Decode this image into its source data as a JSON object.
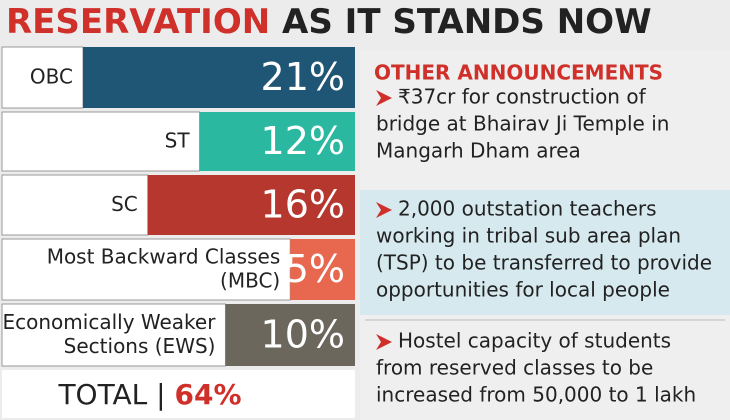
{
  "chart_data": {
    "type": "bar",
    "title_parts": [
      "RESERVATION",
      "AS IT STANDS NOW"
    ],
    "categories": [
      "OBC",
      "ST",
      "SC",
      "Most Backward Classes\n(MBC)",
      "Economically Weaker\nSections (EWS)"
    ],
    "values": [
      21,
      12,
      16,
      5,
      10
    ],
    "value_labels": [
      "21%",
      "12%",
      "16%",
      "5%",
      "10%"
    ],
    "colors": [
      "#1f5575",
      "#2bb8a0",
      "#b5372e",
      "#e8674f",
      "#6b675c"
    ],
    "total_label": "TOTAL |",
    "total": 64,
    "total_value_label": "64%"
  },
  "announcements": {
    "title": "OTHER ANNOUNCEMENTS",
    "items": [
      [
        "₹37cr for construction of",
        "bridge at Bhairav Ji Temple in",
        "Mangarh Dham area"
      ],
      [
        "2,000 outstation teachers",
        "working in tribal sub area plan",
        "(TSP) to be transferred to provide",
        "opportunities for local people"
      ],
      [
        "Hostel capacity of students",
        "from reserved classes to be",
        "increased from 50,000 to 1 lakh"
      ]
    ]
  }
}
